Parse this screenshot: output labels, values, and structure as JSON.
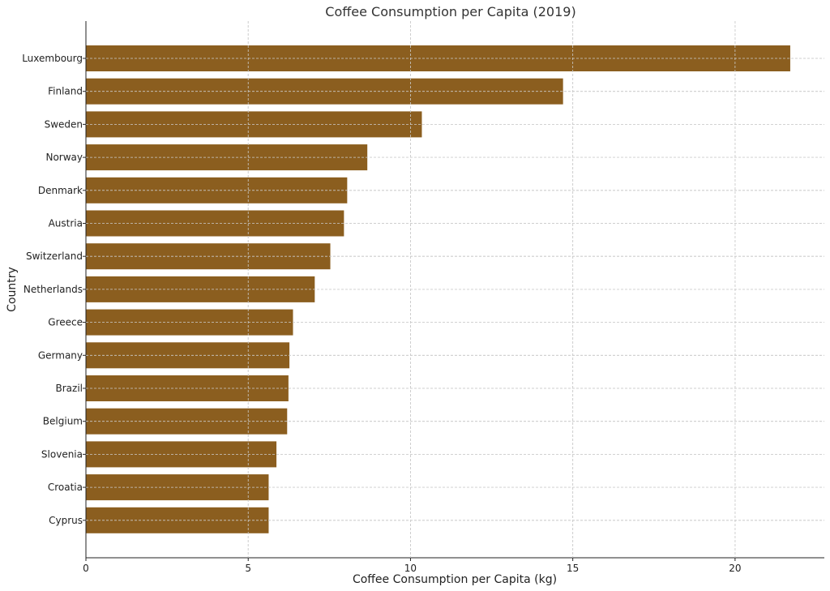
{
  "chart_data": {
    "type": "bar",
    "orientation": "horizontal",
    "title": "Coffee Consumption per Capita (2019)",
    "xlabel": "Coffee Consumption per Capita (kg)",
    "ylabel": "Country",
    "xlim": [
      0,
      22.75
    ],
    "xticks": [
      0,
      5,
      10,
      15,
      20
    ],
    "grid": true,
    "bar_color": "#8B5E1F",
    "categories": [
      "Luxembourg",
      "Finland",
      "Sweden",
      "Norway",
      "Denmark",
      "Austria",
      "Switzerland",
      "Netherlands",
      "Greece",
      "Germany",
      "Brazil",
      "Belgium",
      "Slovenia",
      "Croatia",
      "Cyprus"
    ],
    "values": [
      21.7,
      14.7,
      10.35,
      8.67,
      8.05,
      7.95,
      7.53,
      7.05,
      6.38,
      6.27,
      6.24,
      6.2,
      5.87,
      5.63,
      5.63
    ]
  }
}
